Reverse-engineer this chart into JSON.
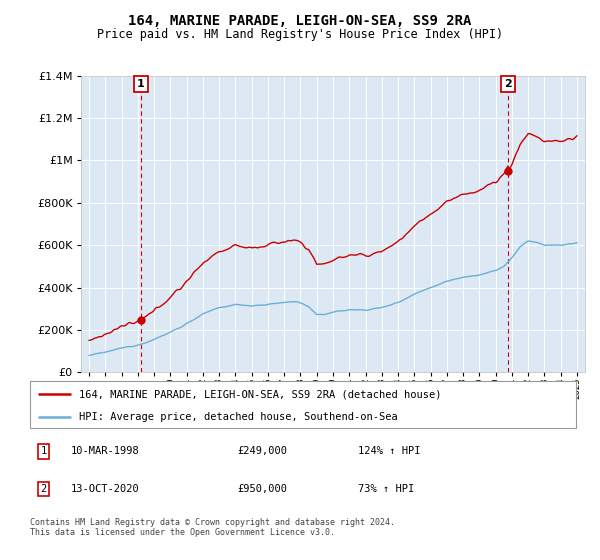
{
  "title": "164, MARINE PARADE, LEIGH-ON-SEA, SS9 2RA",
  "subtitle": "Price paid vs. HM Land Registry's House Price Index (HPI)",
  "legend_line1": "164, MARINE PARADE, LEIGH-ON-SEA, SS9 2RA (detached house)",
  "legend_line2": "HPI: Average price, detached house, Southend-on-Sea",
  "sale1_date": "10-MAR-1998",
  "sale1_price": 249000,
  "sale1_hpi": "124% ↑ HPI",
  "sale2_date": "13-OCT-2020",
  "sale2_price": 950000,
  "sale2_hpi": "73% ↑ HPI",
  "footer": "Contains HM Land Registry data © Crown copyright and database right 2024.\nThis data is licensed under the Open Government Licence v3.0.",
  "hpi_color": "#6baed6",
  "price_color": "#cc0000",
  "plot_bg": "#dce9f5",
  "grid_color": "#ffffff",
  "ylim": [
    0,
    1400000
  ],
  "yticks": [
    0,
    200000,
    400000,
    600000,
    800000,
    1000000,
    1200000,
    1400000
  ],
  "sale1_year": 1998.19,
  "sale2_year": 2020.79
}
